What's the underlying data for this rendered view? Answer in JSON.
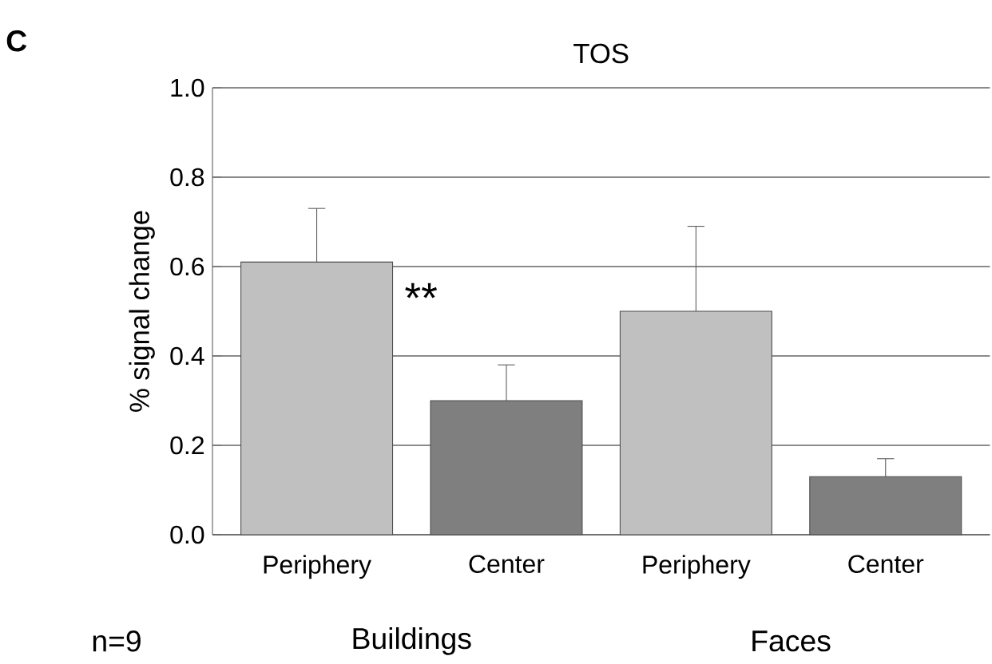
{
  "chart_data": {
    "type": "bar",
    "title": "TOS",
    "ylabel": "% signal change",
    "categories": [
      "Periphery",
      "Center",
      "Periphery",
      "Center"
    ],
    "values": [
      0.61,
      0.3,
      0.5,
      0.13
    ],
    "colors": [
      "#c0c0c0",
      "#7f7f7f",
      "#c0c0c0",
      "#7f7f7f"
    ],
    "errors": [
      [
        0.61,
        0.73
      ],
      [
        0.3,
        0.38
      ],
      [
        0.5,
        0.69
      ],
      [
        0.13,
        0.17
      ]
    ],
    "ylim": [
      0,
      1.0
    ],
    "yticks": [
      {
        "value": 0,
        "label": "0.0"
      },
      {
        "value": 0.2,
        "label": "0.2"
      },
      {
        "value": 0.4,
        "label": "0.4"
      },
      {
        "value": 0.6,
        "label": "0.6"
      },
      {
        "value": 0.8,
        "label": "0.8"
      },
      {
        "value": 1.0,
        "label": "1.0"
      }
    ],
    "grid": "y",
    "annotations": [
      "C",
      "n=9",
      "Buildings",
      "Faces",
      "**"
    ]
  }
}
